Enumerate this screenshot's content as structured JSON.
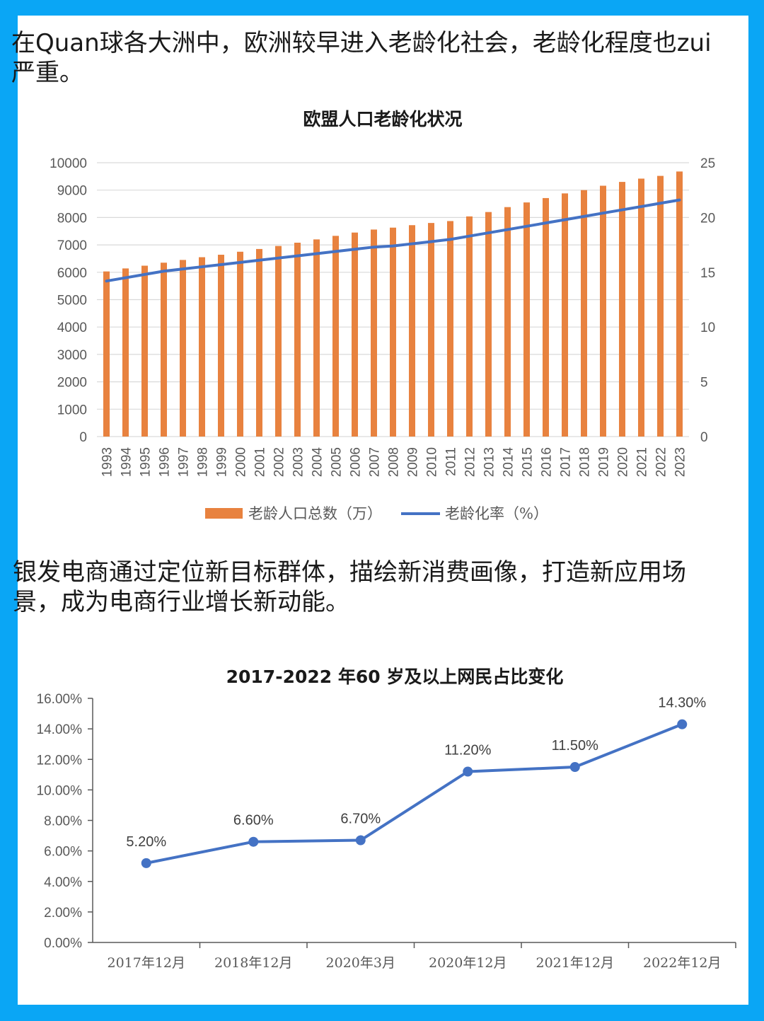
{
  "texts": {
    "para1": "在Quan球各大洲中，欧洲较早进入老龄化社会，老龄化程度也zui严重。",
    "para2": "银发电商通过定位新目标群体，描绘新消费画像，打造新应用场景，成为电商行业增长新动能。"
  },
  "colors": {
    "bar": "#e8823f",
    "line": "#4472c4",
    "grid": "#d9d9d9",
    "axis": "#595959"
  },
  "chart_data": [
    {
      "type": "bar",
      "title": "欧盟人口老龄化状况",
      "categories": [
        "1993",
        "1994",
        "1995",
        "1996",
        "1997",
        "1998",
        "1999",
        "2000",
        "2001",
        "2002",
        "2003",
        "2004",
        "2005",
        "2006",
        "2007",
        "2008",
        "2009",
        "2010",
        "2011",
        "2012",
        "2013",
        "2014",
        "2015",
        "2016",
        "2017",
        "2018",
        "2019",
        "2020",
        "2021",
        "2022",
        "2023"
      ],
      "series": [
        {
          "name": "老龄人口总数（万）",
          "type": "bar",
          "axis": "left",
          "values": [
            6030,
            6140,
            6240,
            6350,
            6450,
            6550,
            6640,
            6750,
            6850,
            6960,
            7080,
            7200,
            7330,
            7450,
            7560,
            7630,
            7720,
            7800,
            7870,
            8040,
            8200,
            8380,
            8550,
            8710,
            8880,
            9000,
            9160,
            9300,
            9420,
            9520,
            9680
          ]
        },
        {
          "name": "老龄化率（%）",
          "type": "line",
          "axis": "right",
          "values": [
            14.2,
            14.5,
            14.8,
            15.1,
            15.3,
            15.5,
            15.7,
            15.9,
            16.1,
            16.3,
            16.5,
            16.7,
            16.9,
            17.1,
            17.3,
            17.4,
            17.6,
            17.8,
            18.0,
            18.3,
            18.6,
            18.9,
            19.2,
            19.5,
            19.8,
            20.1,
            20.4,
            20.7,
            21.0,
            21.3,
            21.6
          ]
        }
      ],
      "y_left": {
        "min": 0,
        "max": 10000,
        "step": 1000,
        "ticks": [
          "0",
          "1000",
          "2000",
          "3000",
          "4000",
          "5000",
          "6000",
          "7000",
          "8000",
          "9000",
          "10000"
        ]
      },
      "y_right": {
        "min": 0,
        "max": 25,
        "step": 5,
        "ticks": [
          "0",
          "5",
          "10",
          "15",
          "20",
          "25"
        ]
      },
      "grid": true,
      "legend": "bottom"
    },
    {
      "type": "line",
      "title": "2017-2022 年60 岁及以上网民占比变化",
      "categories": [
        "2017年12月",
        "2018年12月",
        "2020年3月",
        "2020年12月",
        "2021年12月",
        "2022年12月"
      ],
      "series": [
        {
          "name": "60岁及以上网民占比",
          "values": [
            5.2,
            6.6,
            6.7,
            11.2,
            11.5,
            14.3
          ],
          "labels": [
            "5.20%",
            "6.60%",
            "6.70%",
            "11.20%",
            "11.50%",
            "14.30%"
          ]
        }
      ],
      "ylim": [
        0,
        16
      ],
      "y_ticks": [
        "0.00%",
        "2.00%",
        "4.00%",
        "6.00%",
        "8.00%",
        "10.00%",
        "12.00%",
        "14.00%",
        "16.00%"
      ],
      "grid": false
    }
  ]
}
